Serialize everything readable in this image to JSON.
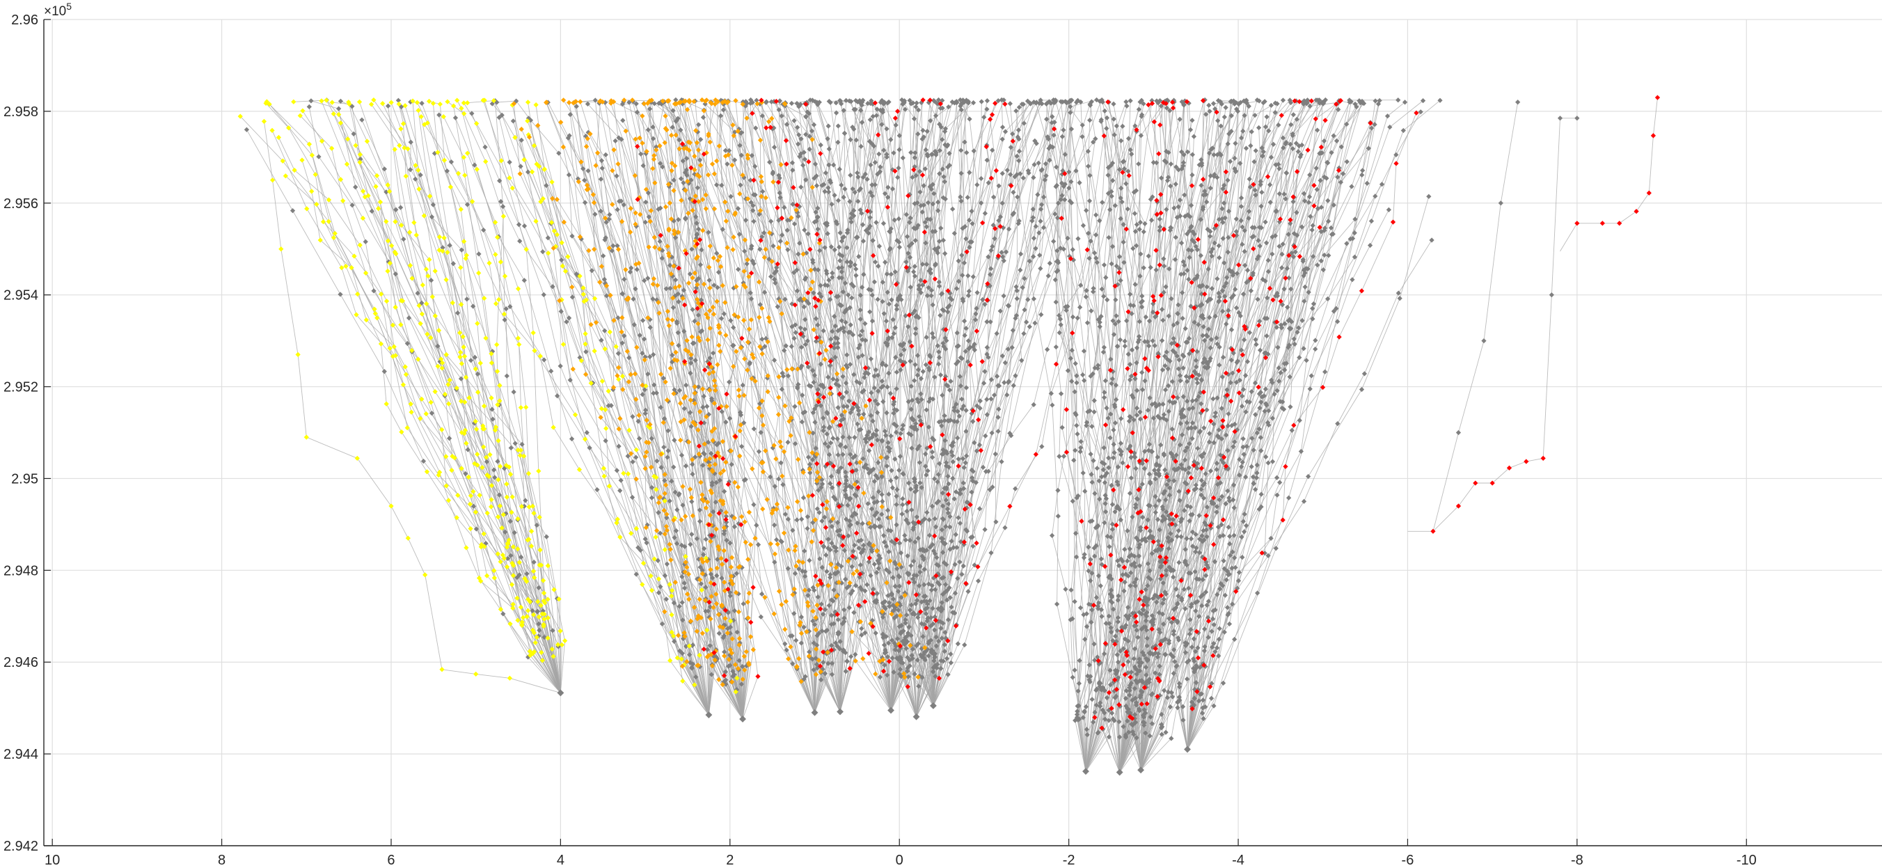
{
  "chart_data": {
    "type": "scatter",
    "title": "",
    "xlabel": "",
    "ylabel": "",
    "x_direction": "reversed",
    "xlim": [
      10.1,
      -11.6
    ],
    "ylim": [
      294200,
      296000
    ],
    "x_ticks": [
      10,
      8,
      6,
      4,
      2,
      0,
      -2,
      -4,
      -6,
      -8,
      -10
    ],
    "x_tick_labels": [
      "10",
      "8",
      "6",
      "4",
      "2",
      "0",
      "-2",
      "-4",
      "-6",
      "-8",
      "-10"
    ],
    "y_ticks": [
      294200,
      294400,
      294600,
      294800,
      295000,
      295200,
      295400,
      295600,
      295800,
      296000
    ],
    "y_tick_labels": [
      "2.942",
      "2.944",
      "2.946",
      "2.948",
      "2.95",
      "2.952",
      "2.954",
      "2.956",
      "2.958",
      "2.96"
    ],
    "y_exponent_label": "×10",
    "y_exponent": "5",
    "grid": true,
    "legend": "none",
    "marker": "diamond",
    "line_color": "#a6a6a6",
    "series_colors": {
      "gray": "#7f7f7f",
      "yellow": "#ffff00",
      "orange": "#ffa500",
      "red": "#ff0000"
    },
    "roots": [
      {
        "x": 4.0,
        "y": 294533
      },
      {
        "x": 2.25,
        "y": 294485
      },
      {
        "x": 1.85,
        "y": 294476
      },
      {
        "x": 1.0,
        "y": 294490
      },
      {
        "x": 0.7,
        "y": 294492
      },
      {
        "x": 0.1,
        "y": 294495
      },
      {
        "x": -0.2,
        "y": 294481
      },
      {
        "x": -0.4,
        "y": 294505
      },
      {
        "x": -2.2,
        "y": 294362
      },
      {
        "x": -2.6,
        "y": 294360
      },
      {
        "x": -2.85,
        "y": 294365
      },
      {
        "x": -3.4,
        "y": 294410
      }
    ],
    "paths": [
      {
        "color": "red",
        "points": [
          [
            -7.8,
            295495
          ],
          [
            -8.0,
            295556
          ],
          [
            -8.3,
            295556
          ],
          [
            -8.5,
            295556
          ],
          [
            -8.7,
            295582
          ],
          [
            -8.85,
            295622
          ],
          [
            -8.9,
            295747
          ],
          [
            -8.95,
            295830
          ]
        ]
      },
      {
        "color": "red",
        "points": [
          [
            -6.0,
            294885
          ],
          [
            -6.3,
            294885
          ],
          [
            -6.6,
            294940
          ],
          [
            -6.8,
            294990
          ],
          [
            -7.0,
            294990
          ],
          [
            -7.2,
            295023
          ],
          [
            -7.4,
            295037
          ],
          [
            -7.6,
            295044
          ]
        ]
      },
      {
        "color": "yellow",
        "points": [
          [
            4.0,
            294533
          ],
          [
            4.6,
            294565
          ],
          [
            5.0,
            294574
          ],
          [
            5.4,
            294584
          ],
          [
            5.6,
            294790
          ],
          [
            5.8,
            294870
          ],
          [
            6.0,
            294940
          ],
          [
            6.4,
            295044
          ],
          [
            7.0,
            295090
          ],
          [
            7.1,
            295270
          ],
          [
            7.3,
            295500
          ],
          [
            7.4,
            295650
          ],
          [
            7.5,
            295778
          ]
        ]
      },
      {
        "color": "gray",
        "points": [
          [
            -7.6,
            295044
          ],
          [
            -7.7,
            295400
          ],
          [
            -7.8,
            295785
          ],
          [
            -8.0,
            295785
          ]
        ]
      },
      {
        "color": "gray",
        "points": [
          [
            -6.3,
            294885
          ],
          [
            -6.6,
            295100
          ],
          [
            -6.9,
            295300
          ],
          [
            -7.1,
            295600
          ],
          [
            -7.3,
            295820
          ]
        ]
      }
    ]
  }
}
